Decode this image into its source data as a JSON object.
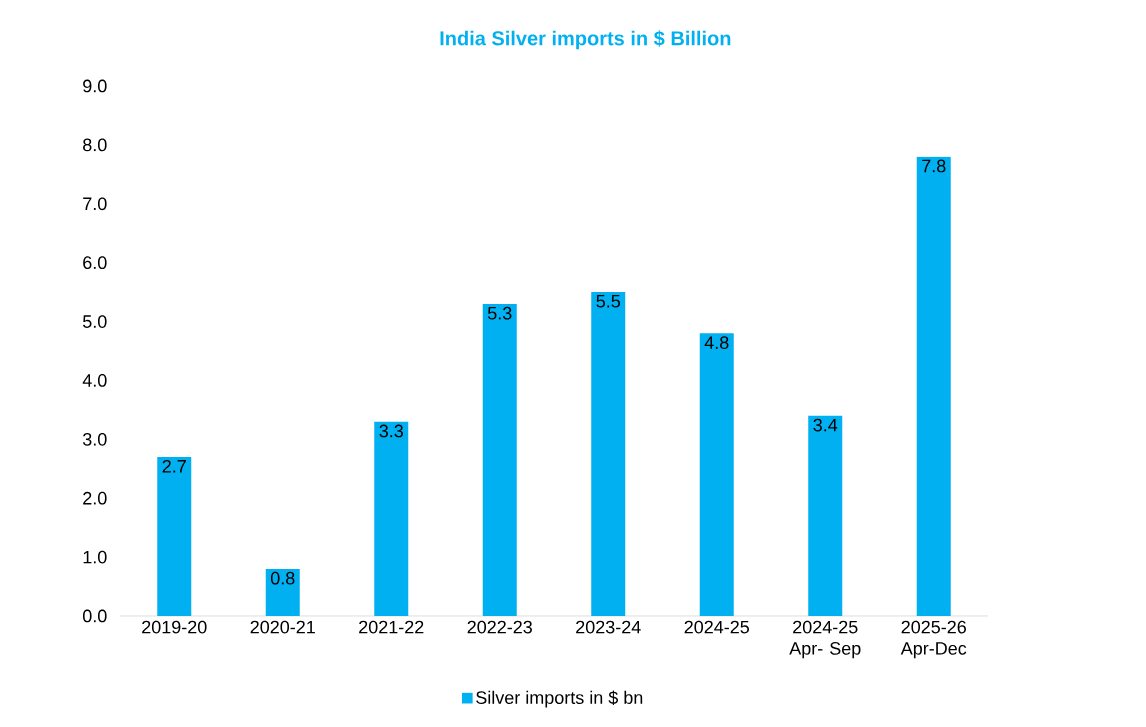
{
  "chart_data": {
    "type": "bar",
    "title": "India Silver  imports in $ Billion",
    "categories": [
      "2019-20",
      "2020-21",
      "2021-22",
      "2022-23",
      "2023-24",
      "2024-25",
      "2024-25 Apr- Sep",
      "2025-26 Apr-Dec"
    ],
    "series": [
      {
        "name": "Silver imports in $ bn",
        "color": "#00b0f0",
        "values": [
          2.7,
          0.8,
          3.3,
          5.3,
          5.5,
          4.8,
          3.4,
          7.8
        ]
      }
    ],
    "ylim": [
      0,
      9
    ],
    "yticks": [
      {
        "value": 0,
        "label": "0.0"
      },
      {
        "value": 1,
        "label": "1.0"
      },
      {
        "value": 2,
        "label": "2.0"
      },
      {
        "value": 3,
        "label": "3.0"
      },
      {
        "value": 4,
        "label": "4.0"
      },
      {
        "value": 5,
        "label": "5.0"
      },
      {
        "value": 6,
        "label": "6.0"
      },
      {
        "value": 7,
        "label": "7.0"
      },
      {
        "value": 8,
        "label": "8.0"
      },
      {
        "value": 9,
        "label": "9.0"
      }
    ],
    "data_labels": true,
    "legend": "bottom",
    "grid": false
  }
}
